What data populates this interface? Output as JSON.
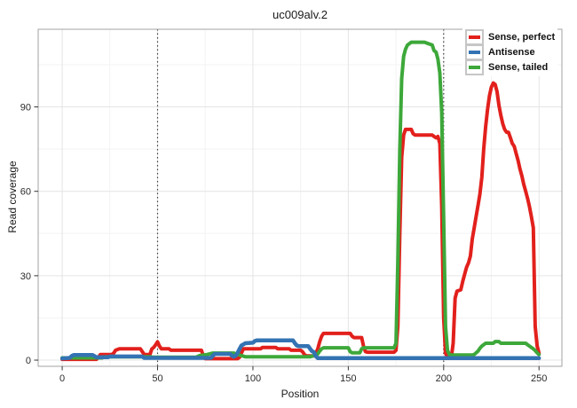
{
  "chart_data": {
    "type": "line",
    "title": "uc009alv.2",
    "xlabel": "Position",
    "ylabel": "Read coverage",
    "xlim": [
      -12.6,
      262.0
    ],
    "ylim": [
      -2.2,
      117.6
    ],
    "x_ticks": [
      0,
      50,
      100,
      150,
      200,
      250
    ],
    "y_ticks": [
      0,
      30,
      60,
      90
    ],
    "x_minor_ticks": [
      25,
      75,
      125,
      175,
      225
    ],
    "y_minor_ticks": [
      15,
      45,
      75,
      105
    ],
    "vlines": [
      50,
      200
    ],
    "vline_style": "dotted",
    "grid": true,
    "legend_position": "top-right",
    "series": [
      {
        "name": "Sense, perfect",
        "color": "#E2201C",
        "width": 4,
        "points": [
          [
            0,
            0.3
          ],
          [
            18,
            0.3
          ],
          [
            19,
            1
          ],
          [
            20,
            2
          ],
          [
            26,
            2
          ],
          [
            27,
            2.5
          ],
          [
            28,
            3.5
          ],
          [
            30,
            4
          ],
          [
            41,
            4
          ],
          [
            42,
            3
          ],
          [
            43,
            2
          ],
          [
            46,
            2
          ],
          [
            47,
            4
          ],
          [
            48,
            4.5
          ],
          [
            49,
            5.5
          ],
          [
            50,
            6.5
          ],
          [
            51,
            5
          ],
          [
            52,
            4
          ],
          [
            56,
            4
          ],
          [
            57,
            3.5
          ],
          [
            73,
            3.5
          ],
          [
            74,
            1.5
          ],
          [
            75,
            0.5
          ],
          [
            92,
            0.5
          ],
          [
            93,
            1
          ],
          [
            94,
            2.5
          ],
          [
            95,
            4
          ],
          [
            104,
            4
          ],
          [
            105,
            4.5
          ],
          [
            112,
            4.5
          ],
          [
            113,
            4
          ],
          [
            119,
            4
          ],
          [
            120,
            3.5
          ],
          [
            125,
            3.5
          ],
          [
            126,
            3
          ],
          [
            127,
            2
          ],
          [
            128,
            1.5
          ],
          [
            132,
            1.5
          ],
          [
            133,
            2.5
          ],
          [
            134,
            4
          ],
          [
            135,
            6.5
          ],
          [
            136,
            8.5
          ],
          [
            137,
            9.5
          ],
          [
            151,
            9.5
          ],
          [
            152,
            8.5
          ],
          [
            153,
            8
          ],
          [
            157,
            8
          ],
          [
            158,
            5
          ],
          [
            159,
            3
          ],
          [
            160,
            2.8
          ],
          [
            174,
            2.8
          ],
          [
            175,
            3.5
          ],
          [
            176,
            12
          ],
          [
            177,
            45
          ],
          [
            178,
            72
          ],
          [
            179,
            80
          ],
          [
            180,
            82
          ],
          [
            183,
            82
          ],
          [
            184,
            80.5
          ],
          [
            185,
            80
          ],
          [
            194,
            80
          ],
          [
            195,
            79.5
          ],
          [
            196,
            79
          ],
          [
            197,
            79.5
          ],
          [
            198,
            77
          ],
          [
            199,
            55
          ],
          [
            200,
            15
          ],
          [
            201,
            2.5
          ],
          [
            202,
            1
          ],
          [
            204,
            0.8
          ],
          [
            205,
            6
          ],
          [
            206,
            22
          ],
          [
            207,
            24.5
          ],
          [
            209,
            25
          ],
          [
            210,
            28
          ],
          [
            211,
            30.5
          ],
          [
            212,
            33
          ],
          [
            213,
            34.5
          ],
          [
            214,
            37
          ],
          [
            215,
            43
          ],
          [
            216,
            47
          ],
          [
            217,
            51
          ],
          [
            218,
            55
          ],
          [
            219,
            59
          ],
          [
            220,
            65
          ],
          [
            221,
            75
          ],
          [
            222,
            83
          ],
          [
            223,
            89
          ],
          [
            224,
            94
          ],
          [
            225,
            97
          ],
          [
            226,
            98.5
          ],
          [
            227,
            98
          ],
          [
            228,
            95.5
          ],
          [
            229,
            90.5
          ],
          [
            230,
            87
          ],
          [
            231,
            84
          ],
          [
            232,
            82
          ],
          [
            233,
            81
          ],
          [
            234,
            81
          ],
          [
            235,
            79
          ],
          [
            236,
            77
          ],
          [
            237,
            76
          ],
          [
            238,
            73.5
          ],
          [
            239,
            71
          ],
          [
            240,
            68
          ],
          [
            241,
            65.5
          ],
          [
            242,
            62.5
          ],
          [
            243,
            60
          ],
          [
            244,
            57.5
          ],
          [
            245,
            54.5
          ],
          [
            246,
            51
          ],
          [
            247,
            47
          ],
          [
            248,
            12
          ],
          [
            249,
            5
          ],
          [
            250,
            2.5
          ]
        ]
      },
      {
        "name": "Antisense",
        "color": "#3373B3",
        "width": 4.5,
        "points": [
          [
            0,
            0.6
          ],
          [
            4,
            0.8
          ],
          [
            5,
            1.5
          ],
          [
            6,
            1.8
          ],
          [
            16,
            1.8
          ],
          [
            17,
            1.4
          ],
          [
            18,
            1
          ],
          [
            24,
            1
          ],
          [
            25,
            1.3
          ],
          [
            42,
            1.3
          ],
          [
            43,
            0.8
          ],
          [
            78,
            0.8
          ],
          [
            79,
            1.6
          ],
          [
            80,
            2.2
          ],
          [
            88,
            2.2
          ],
          [
            89,
            1.6
          ],
          [
            90,
            1.2
          ],
          [
            91,
            1.6
          ],
          [
            92,
            2.6
          ],
          [
            93,
            4
          ],
          [
            94,
            5.2
          ],
          [
            95,
            5.6
          ],
          [
            96,
            6
          ],
          [
            100,
            6.2
          ],
          [
            101,
            6.8
          ],
          [
            102,
            7
          ],
          [
            121,
            7
          ],
          [
            122,
            6
          ],
          [
            123,
            5.2
          ],
          [
            124,
            5
          ],
          [
            129,
            5
          ],
          [
            130,
            4
          ],
          [
            131,
            3.2
          ],
          [
            132,
            2.8
          ],
          [
            133,
            1.4
          ],
          [
            134,
            0.7
          ],
          [
            250,
            0.7
          ]
        ]
      },
      {
        "name": "Sense, tailed",
        "color": "#3DA83A",
        "width": 4,
        "points": [
          [
            0,
            0.8
          ],
          [
            21,
            0.8
          ],
          [
            22,
            1.2
          ],
          [
            46,
            1.2
          ],
          [
            48,
            1
          ],
          [
            70,
            1
          ],
          [
            72,
            1.6
          ],
          [
            76,
            2
          ],
          [
            79,
            2.5
          ],
          [
            90,
            2.5
          ],
          [
            91,
            2.2
          ],
          [
            94,
            1.6
          ],
          [
            96,
            1.2
          ],
          [
            130,
            1.2
          ],
          [
            132,
            1.6
          ],
          [
            134,
            2.2
          ],
          [
            135,
            3.2
          ],
          [
            136,
            4
          ],
          [
            137,
            4.4
          ],
          [
            150,
            4.4
          ],
          [
            151,
            3
          ],
          [
            152,
            2.6
          ],
          [
            156,
            2.6
          ],
          [
            157,
            4
          ],
          [
            158,
            4.4
          ],
          [
            174,
            4.4
          ],
          [
            175,
            6
          ],
          [
            176,
            35
          ],
          [
            177,
            75
          ],
          [
            178,
            100
          ],
          [
            179,
            108
          ],
          [
            180,
            110.5
          ],
          [
            181,
            112
          ],
          [
            183,
            113
          ],
          [
            190,
            113
          ],
          [
            192,
            112.5
          ],
          [
            194,
            112
          ],
          [
            195,
            110
          ],
          [
            196,
            109.5
          ],
          [
            197,
            107
          ],
          [
            198,
            102
          ],
          [
            199,
            88
          ],
          [
            200,
            50
          ],
          [
            201,
            12
          ],
          [
            202,
            3.5
          ],
          [
            203,
            2
          ],
          [
            204,
            1.8
          ],
          [
            215,
            1.8
          ],
          [
            216,
            2
          ],
          [
            217,
            2.6
          ],
          [
            218,
            3.2
          ],
          [
            219,
            4.2
          ],
          [
            220,
            5
          ],
          [
            221,
            5.5
          ],
          [
            222,
            6
          ],
          [
            226,
            6
          ],
          [
            227,
            6.6
          ],
          [
            229,
            6.6
          ],
          [
            230,
            6
          ],
          [
            243,
            6
          ],
          [
            244,
            5.5
          ],
          [
            245,
            5
          ],
          [
            246,
            4.5
          ],
          [
            247,
            4
          ],
          [
            248,
            3.4
          ],
          [
            249,
            2.6
          ],
          [
            250,
            2
          ]
        ]
      }
    ],
    "colors": {
      "panel_border": "#a3a3a3",
      "grid_major": "#e4e4e4",
      "grid_minor": "#f3f3f3",
      "vline": "#404040",
      "tick": "#333333",
      "tick_label": "#2b2b2b"
    }
  }
}
